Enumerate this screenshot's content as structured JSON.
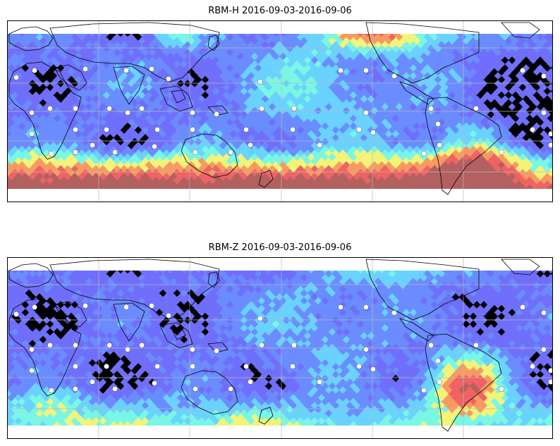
{
  "figure": {
    "panels": [
      {
        "id": "rbm-h",
        "title": "RBM-H 2016-09-03-2016-09-06",
        "band_colors": [
          "#6f6ffc",
          "#6a8cff",
          "#6ad2ff",
          "#7af7e4",
          "#f2f47a",
          "#f79a62",
          "#ef6363",
          "#b36060"
        ],
        "fields": {
          "south_band": "high",
          "north_pacific_atlantic": "high",
          "south_atlantic_blob": "high"
        }
      },
      {
        "id": "rbm-z",
        "title": "RBM-Z 2016-09-03-2016-09-06",
        "band_colors": [
          "#6f6ffc",
          "#6a8cff",
          "#6ad2ff",
          "#7af7e4",
          "#f2f47a",
          "#f79a62",
          "#ef6363",
          "#b36060"
        ],
        "fields": {
          "south_band": "moderate",
          "north_atlantic": "moderate",
          "south_atlantic_blob": "high"
        }
      }
    ]
  }
}
